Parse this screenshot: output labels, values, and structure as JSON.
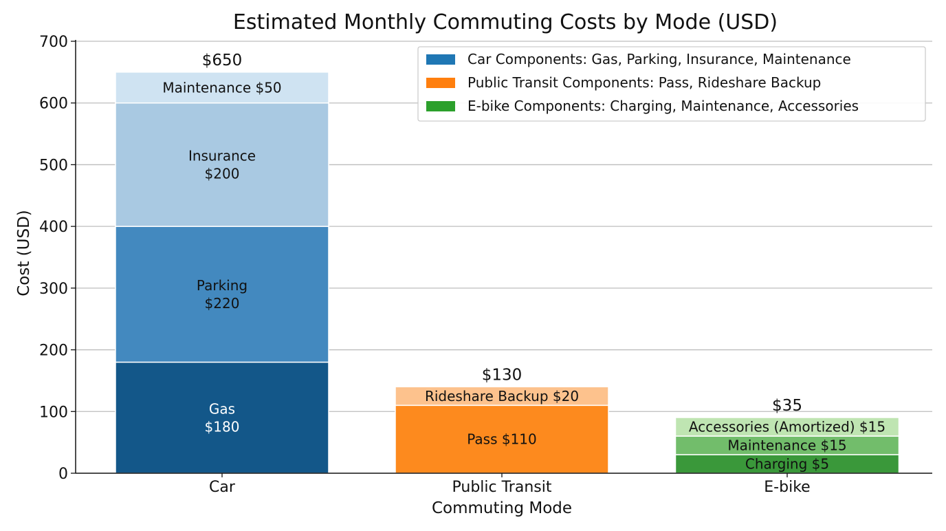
{
  "chart_data": {
    "type": "bar",
    "stacked": true,
    "title": "Estimated Monthly Commuting Costs by Mode (USD)",
    "xlabel": "Commuting Mode",
    "ylabel": "Cost (USD)",
    "ylim": [
      0,
      700
    ],
    "yticks": [
      "0",
      "100",
      "200",
      "300",
      "400",
      "500",
      "600",
      "700"
    ],
    "grid": "horizontal",
    "legend_position": "top-right",
    "legend": [
      {
        "label": "Car Components: Gas, Parking, Insurance, Maintenance",
        "color": "#1f77b4"
      },
      {
        "label": "Public Transit Components: Pass, Rideshare Backup",
        "color": "#ff7f0e"
      },
      {
        "label": "E-bike Components: Charging, Maintenance, Accessories",
        "color": "#2ca02c"
      }
    ],
    "categories": [
      {
        "name": "Car",
        "total_label": "$650",
        "segments": [
          {
            "name": "Gas",
            "value": 180,
            "label": [
              "Gas",
              "$180"
            ],
            "color": "#135789",
            "text_color": "#ffffff"
          },
          {
            "name": "Parking",
            "value": 220,
            "label": [
              "Parking",
              "$220"
            ],
            "color": "#4389bf",
            "text_color": "#111111"
          },
          {
            "name": "Insurance",
            "value": 200,
            "label": [
              "Insurance",
              "$200"
            ],
            "color": "#a9c9e2",
            "text_color": "#111111"
          },
          {
            "name": "Maintenance",
            "value": 50,
            "label": [
              "Maintenance $50"
            ],
            "color": "#cfe3f2",
            "text_color": "#111111"
          }
        ]
      },
      {
        "name": "Public Transit",
        "total_label": "$130",
        "segments": [
          {
            "name": "Pass",
            "value": 110,
            "label": [
              "Pass $110"
            ],
            "color": "#fd8a1e",
            "text_color": "#111111"
          },
          {
            "name": "Rideshare Backup",
            "value": 20,
            "label": [
              "Rideshare Backup $20"
            ],
            "color": "#fdc28d",
            "text_color": "#111111"
          }
        ]
      },
      {
        "name": "E-bike",
        "total_label": "$35",
        "segments": [
          {
            "name": "Charging",
            "value": 5,
            "label": [
              "Charging $5"
            ],
            "color": "#3a983a",
            "text_color": "#111111"
          },
          {
            "name": "Maintenance",
            "value": 15,
            "label": [
              "Maintenance $15"
            ],
            "color": "#72bd6b",
            "text_color": "#111111"
          },
          {
            "name": "Accessories (Amortized)",
            "value": 15,
            "label": [
              "Accessories (Amortized) $15"
            ],
            "color": "#bfe5b2",
            "text_color": "#111111"
          }
        ]
      }
    ]
  }
}
